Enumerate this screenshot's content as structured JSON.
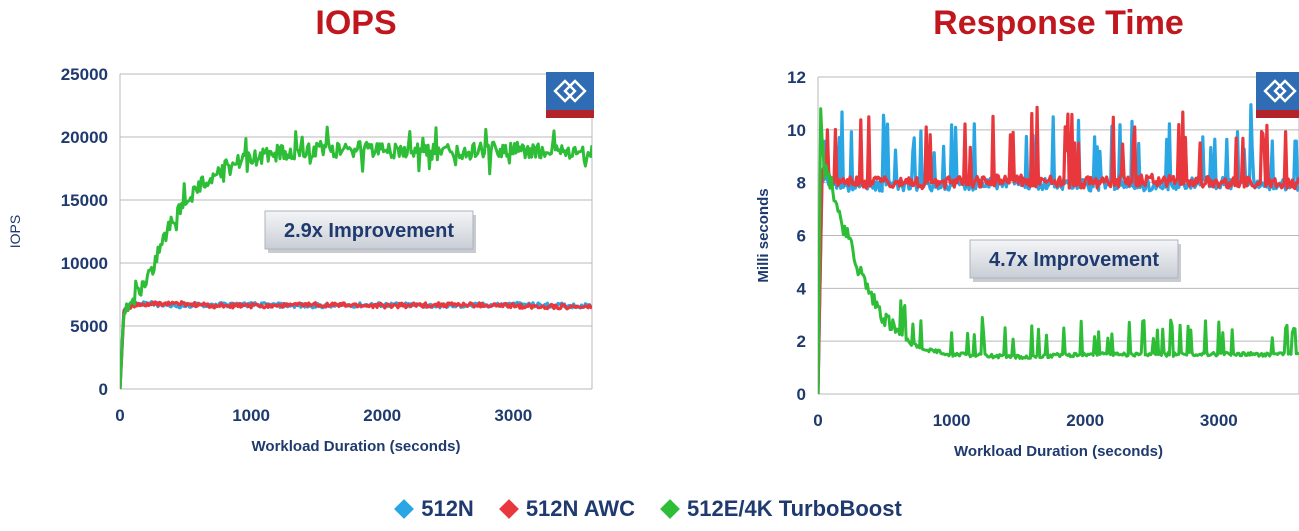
{
  "chart_data": [
    {
      "type": "line",
      "title": "IOPS",
      "xlabel": "Workload Duration (seconds)",
      "ylabel": "IOPS",
      "xlim": [
        0,
        3600
      ],
      "ylim": [
        0,
        25000
      ],
      "xticks": [
        0,
        1000,
        2000,
        3000
      ],
      "yticks": [
        0,
        5000,
        10000,
        15000,
        20000,
        25000
      ],
      "grid": true,
      "annotation": "2.9x Improvement",
      "series": [
        {
          "name": "512N",
          "color": "#29a6e3",
          "x": [
            0,
            30,
            100,
            200,
            400,
            700,
            1000,
            1500,
            2000,
            2500,
            3000,
            3600
          ],
          "y": [
            0,
            6400,
            6800,
            6800,
            6600,
            6700,
            6700,
            6600,
            6700,
            6600,
            6700,
            6600
          ]
        },
        {
          "name": "512N AWC",
          "color": "#e8383d",
          "x": [
            0,
            30,
            100,
            200,
            400,
            700,
            1000,
            1500,
            2000,
            2500,
            3000,
            3600
          ],
          "y": [
            0,
            6200,
            6600,
            6700,
            6800,
            6600,
            6600,
            6700,
            6600,
            6700,
            6600,
            6500
          ]
        },
        {
          "name": "512E/4K TurboBoost",
          "color": "#2dbd36",
          "x": [
            0,
            30,
            100,
            200,
            300,
            400,
            500,
            600,
            700,
            800,
            1000,
            1200,
            1500,
            2000,
            2500,
            3000,
            3600
          ],
          "y": [
            0,
            6500,
            7200,
            8500,
            11000,
            13300,
            15000,
            16000,
            17000,
            17500,
            18300,
            18700,
            19000,
            19000,
            18800,
            19000,
            18800
          ]
        }
      ]
    },
    {
      "type": "line",
      "title": "Response Time",
      "xlabel": "Workload Duration (seconds)",
      "ylabel": "Milli seconds",
      "xlim": [
        0,
        3600
      ],
      "ylim": [
        0,
        12
      ],
      "xticks": [
        0,
        1000,
        2000,
        3000
      ],
      "yticks": [
        0,
        2,
        4,
        6,
        8,
        10,
        12
      ],
      "grid": true,
      "annotation": "4.7x Improvement",
      "series": [
        {
          "name": "512N",
          "color": "#29a6e3",
          "x": [
            0,
            30,
            100,
            200,
            400,
            700,
            1000,
            1500,
            2000,
            2500,
            3000,
            3600
          ],
          "y": [
            0,
            8.2,
            7.9,
            7.9,
            7.9,
            7.9,
            7.9,
            8.0,
            7.9,
            7.9,
            8.0,
            7.9
          ]
        },
        {
          "name": "512N AWC",
          "color": "#e8383d",
          "x": [
            0,
            30,
            100,
            200,
            400,
            700,
            1000,
            1500,
            2000,
            2500,
            3000,
            3600
          ],
          "y": [
            0,
            8.5,
            8.1,
            8.0,
            8.0,
            8.0,
            8.0,
            8.1,
            8.0,
            8.1,
            8.0,
            8.0
          ]
        },
        {
          "name": "512E/4K TurboBoost",
          "color": "#2dbd36",
          "x": [
            0,
            20,
            50,
            100,
            150,
            200,
            300,
            400,
            500,
            600,
            700,
            800,
            1000,
            1500,
            2000,
            2500,
            3000,
            3600
          ],
          "y": [
            0,
            10.8,
            8.5,
            8.0,
            7.0,
            6.2,
            4.8,
            3.7,
            2.9,
            2.3,
            1.9,
            1.7,
            1.5,
            1.4,
            1.5,
            1.5,
            1.5,
            1.5
          ]
        }
      ]
    }
  ],
  "legend": [
    {
      "label": "512N",
      "color": "#29a6e3"
    },
    {
      "label": "512N AWC",
      "color": "#e8383d"
    },
    {
      "label": "512E/4K TurboBoost",
      "color": "#2dbd36"
    }
  ],
  "colors": {
    "title": "#c0171f",
    "text": "#1f3a6e",
    "grid": "#b9b9b9",
    "logo_blue": "#2f6cb3",
    "logo_red": "#b3232a"
  },
  "logo_icon": "logo-badge-icon"
}
